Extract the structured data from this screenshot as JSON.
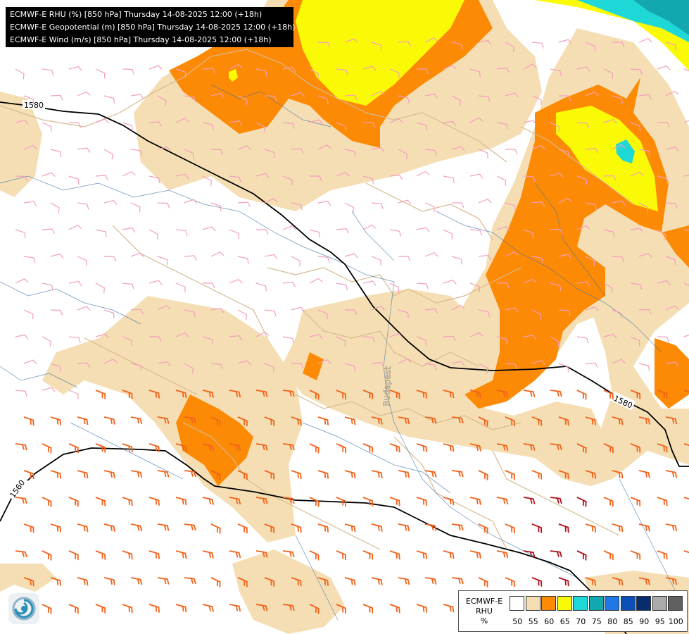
{
  "header": {
    "lines": [
      "ECMWF-E RHU (%) [850 hPa] Thursday 14-08-2025 12:00 (+18h)",
      "ECMWF-E Geopotential (m) [850 hPa] Thursday 14-08-2025 12:00 (+18h)",
      "ECMWF-E Wind (m/s) [850 hPa] Thursday 14-08-2025 12:00 (+18h)"
    ]
  },
  "map": {
    "contour_labels": [
      "1580",
      "1580",
      "1560"
    ],
    "place_label": "Budapest"
  },
  "legend": {
    "model": "ECMWF-E",
    "variable": "RHU",
    "unit": "%",
    "levels": [
      "50",
      "55",
      "60",
      "65",
      "70",
      "75",
      "80",
      "85",
      "90",
      "95",
      "100"
    ],
    "colors": [
      "#ffffff",
      "#f5deb3",
      "#fd8a05",
      "#fafa06",
      "#1ed8d8",
      "#13a8b0",
      "#1e78e6",
      "#0a4fb8",
      "#082c6e",
      "#aaaaaa",
      "#606060"
    ]
  },
  "colors": {
    "land_55": "#f5deb3",
    "orange_60": "#fd8a05",
    "yellow_65": "#fafa06",
    "cyan_70": "#1ed8d8",
    "wind_light": "#f39fbd",
    "wind_medium": "#f2621a",
    "wind_strong": "#b0101a"
  },
  "icons": {
    "logo": "swirl-logo-icon"
  }
}
